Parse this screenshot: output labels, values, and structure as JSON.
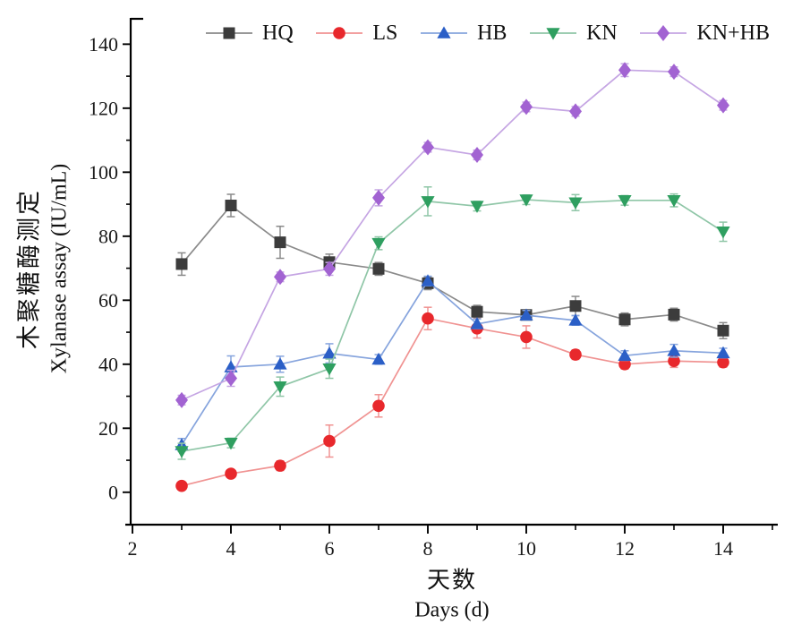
{
  "figure": {
    "background": "#ffffff",
    "axis_color": "#000000",
    "tick_label_color": "#1a1a1a"
  },
  "chart_data": {
    "type": "line",
    "title": "",
    "y_label_zh": "木聚糖酶测定",
    "y_label_en": "Xylanase assay (IU/mL)",
    "x_label_zh": "天数",
    "x_label_en": "Days (d)",
    "x": [
      3,
      4,
      5,
      6,
      7,
      8,
      9,
      10,
      11,
      12,
      13,
      14
    ],
    "x_major_ticks": [
      2,
      4,
      6,
      8,
      10,
      12,
      14
    ],
    "x_minor_ticks": [
      3,
      5,
      7,
      9,
      11,
      13,
      15
    ],
    "y_major_ticks": [
      0,
      20,
      40,
      60,
      80,
      100,
      120,
      140
    ],
    "y_minor_ticks": [
      10,
      30,
      50,
      70,
      90,
      110,
      130
    ],
    "xlim": [
      2,
      15
    ],
    "ylim": [
      -10,
      148
    ],
    "grid": false,
    "legend_position": "top",
    "error_bars": true,
    "series": [
      {
        "name": "HQ",
        "marker": "square",
        "color": "#3c3c3c",
        "line_color": "#8a8a8a",
        "values": [
          71.3,
          89.6,
          78.1,
          71.9,
          69.8,
          65.3,
          56.4,
          55.4,
          58.2,
          54.0,
          55.5,
          50.5
        ],
        "errors": [
          3.5,
          3.5,
          5.0,
          2.5,
          2.0,
          2.0,
          2.0,
          1.5,
          3.0,
          2.0,
          2.0,
          2.5
        ]
      },
      {
        "name": "LS",
        "marker": "circle",
        "color": "#e8282c",
        "line_color": "#f09392",
        "values": [
          2.0,
          5.8,
          8.3,
          16.0,
          27.0,
          54.3,
          51.2,
          48.5,
          43.0,
          40.0,
          41.0,
          40.6
        ],
        "errors": [
          1.0,
          1.0,
          1.5,
          5.0,
          3.5,
          3.5,
          3.0,
          3.5,
          1.5,
          1.5,
          2.0,
          1.5
        ]
      },
      {
        "name": "HB",
        "marker": "triangle-up",
        "color": "#2b5fc7",
        "line_color": "#86a4dd",
        "values": [
          14.8,
          39.1,
          40.0,
          43.4,
          41.5,
          66.0,
          52.6,
          55.3,
          53.7,
          42.7,
          44.2,
          43.5
        ],
        "errors": [
          2.0,
          3.5,
          2.5,
          3.0,
          1.5,
          1.5,
          1.5,
          1.5,
          1.5,
          1.5,
          2.0,
          1.5
        ]
      },
      {
        "name": "KN",
        "marker": "triangle-down",
        "color": "#2f9f60",
        "line_color": "#8fc6a7",
        "values": [
          12.8,
          15.4,
          33.0,
          38.6,
          77.8,
          90.9,
          89.4,
          91.4,
          90.5,
          91.2,
          91.2,
          81.4
        ],
        "errors": [
          2.5,
          1.5,
          3.0,
          3.0,
          2.0,
          4.5,
          1.5,
          1.5,
          2.5,
          1.5,
          2.0,
          3.0
        ]
      },
      {
        "name": "KN+HB",
        "marker": "diamond",
        "color": "#a263d2",
        "line_color": "#c5a5e3",
        "values": [
          28.8,
          35.6,
          67.3,
          69.8,
          92.0,
          107.8,
          105.4,
          120.4,
          119.0,
          131.9,
          131.4,
          120.9
        ],
        "errors": [
          1.5,
          2.5,
          1.5,
          2.0,
          2.5,
          1.5,
          1.5,
          1.5,
          1.5,
          2.0,
          1.5,
          1.5
        ]
      }
    ]
  }
}
